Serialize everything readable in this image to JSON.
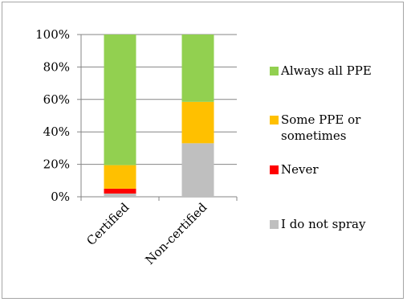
{
  "chart_data": {
    "type": "bar",
    "stacked": true,
    "percent": true,
    "categories": [
      "Certified",
      "Non-certified"
    ],
    "ylim": [
      0,
      100
    ],
    "yticks": [
      "0%",
      "20%",
      "40%",
      "60%",
      "80%",
      "100%"
    ],
    "grid": true,
    "legend_position": "right",
    "series": [
      {
        "name": "I do not spray",
        "color": "#bfbfbf",
        "values": [
          2,
          33
        ]
      },
      {
        "name": "Never",
        "color": "#ff0000",
        "values": [
          3,
          0
        ]
      },
      {
        "name": "Some PPE or sometimes",
        "color": "#ffc000",
        "values": [
          14.5,
          25.5
        ]
      },
      {
        "name": "Always all PPE",
        "color": "#92d050",
        "values": [
          80.5,
          41.5
        ]
      }
    ],
    "legend": [
      {
        "lines": [
          "Always all PPE"
        ],
        "color": "#92d050"
      },
      {
        "lines": [
          "Some PPE or",
          "sometimes"
        ],
        "color": "#ffc000"
      },
      {
        "lines": [
          "Never"
        ],
        "color": "#ff0000"
      },
      {
        "lines": [
          "I do not spray"
        ],
        "color": "#bfbfbf"
      }
    ]
  }
}
